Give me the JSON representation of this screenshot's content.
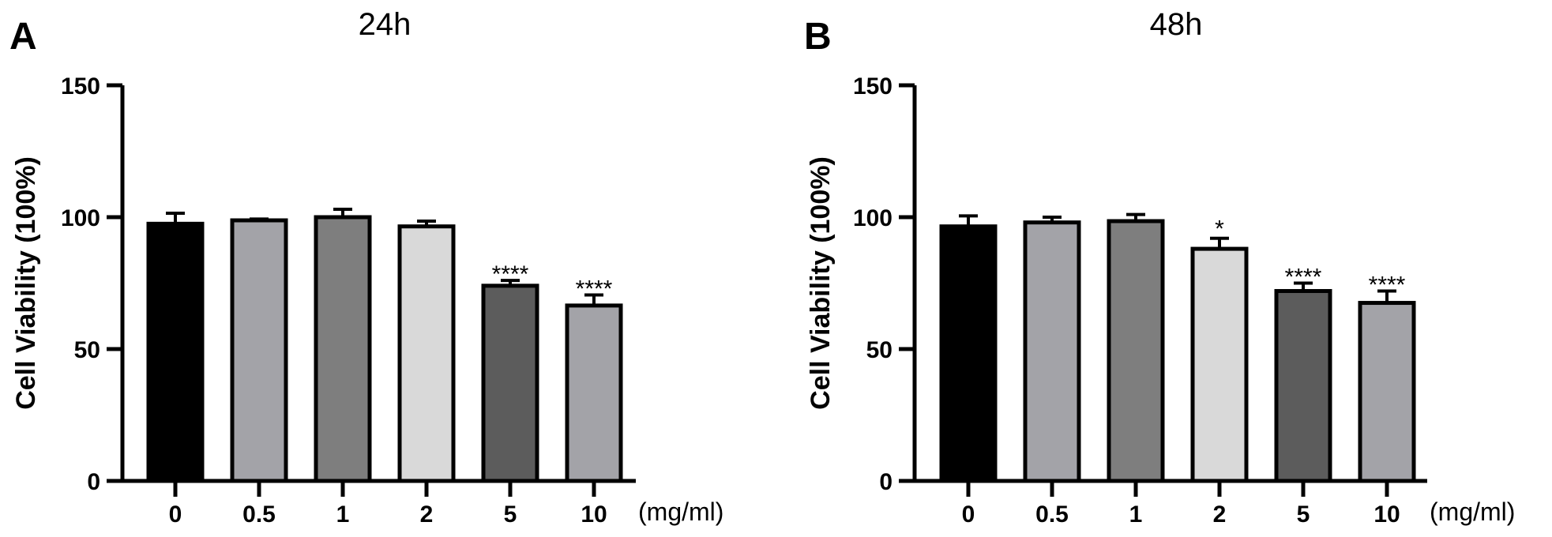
{
  "chart_data": [
    {
      "type": "bar",
      "panel": "A",
      "title": "24h",
      "ylabel": "Cell Viability (100%)",
      "xlabel": "(mg/ml)",
      "ylim": [
        0,
        150
      ],
      "yticks": [
        0,
        50,
        100,
        150
      ],
      "categories": [
        "0",
        "0.5",
        "1",
        "2",
        "5",
        "10"
      ],
      "values": [
        97.5,
        98.8,
        100,
        96.5,
        74,
        66.5
      ],
      "errors": [
        4,
        0.5,
        3,
        2,
        2,
        4
      ],
      "significance": [
        "",
        "",
        "",
        "",
        "****",
        "****"
      ],
      "colors": [
        "#000000",
        "#a3a3a8",
        "#7e7e7e",
        "#d9d9d9",
        "#5c5c5c",
        "#a3a3a8"
      ]
    },
    {
      "type": "bar",
      "panel": "B",
      "title": "48h",
      "ylabel": "Cell Viability (100%)",
      "xlabel": "(mg/ml)",
      "ylim": [
        0,
        150
      ],
      "yticks": [
        0,
        50,
        100,
        150
      ],
      "categories": [
        "0",
        "0.5",
        "1",
        "2",
        "5",
        "10"
      ],
      "values": [
        96.5,
        98,
        98.5,
        88,
        72,
        67.5
      ],
      "errors": [
        4,
        2,
        2.5,
        4,
        3,
        4.5
      ],
      "significance": [
        "",
        "",
        "",
        "*",
        "****",
        "****"
      ],
      "colors": [
        "#000000",
        "#a3a3a8",
        "#7e7e7e",
        "#d9d9d9",
        "#5c5c5c",
        "#a3a3a8"
      ]
    }
  ]
}
